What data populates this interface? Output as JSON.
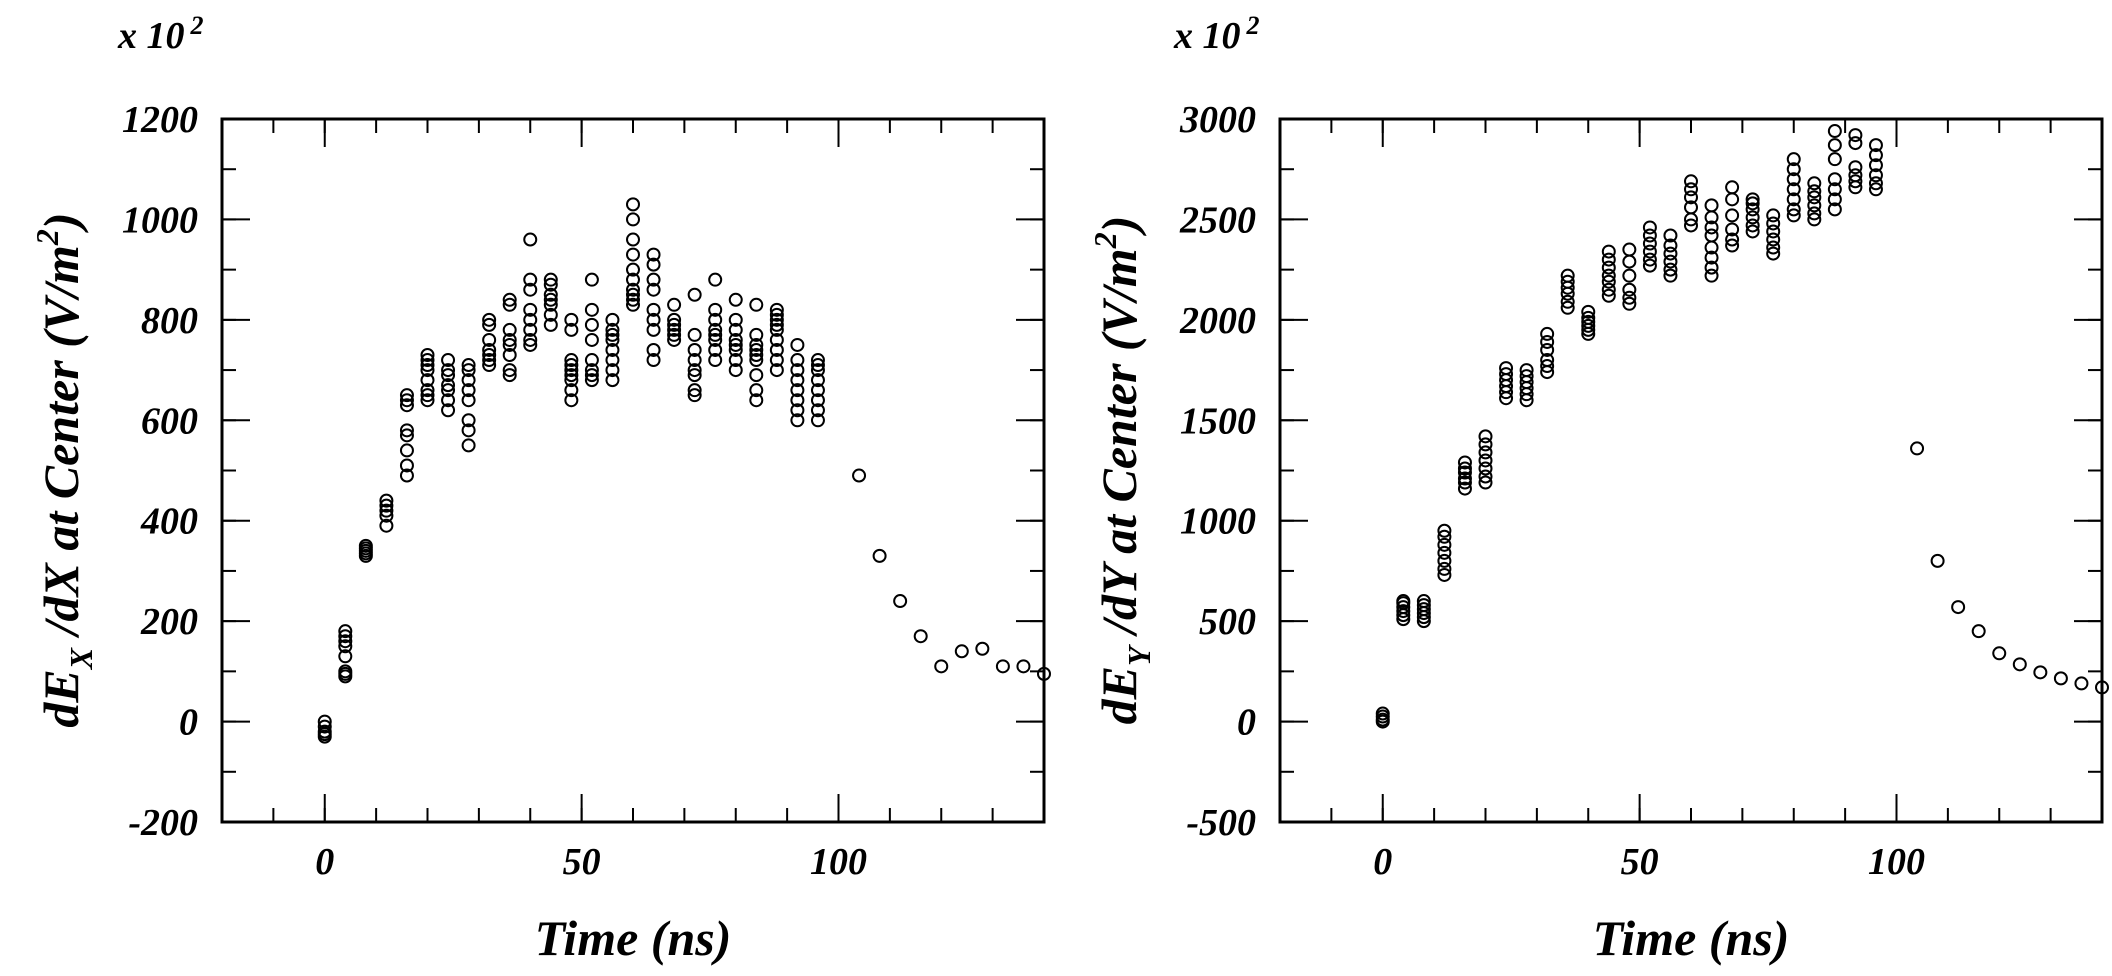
{
  "chart_data": [
    {
      "type": "scatter",
      "scale_label": "x 10",
      "scale_exponent": "2",
      "xlabel": "Time (ns)",
      "ylabel_main": "dE",
      "ylabel_sub": "X",
      "ylabel_rest": " /dX at Center (V/m",
      "ylabel_sup": "2",
      "ylabel_close": ")",
      "xlim": [
        -20,
        140
      ],
      "ylim": [
        -200,
        1200
      ],
      "xticks": [
        0,
        50,
        100
      ],
      "yticks": [
        -200,
        0,
        200,
        400,
        600,
        800,
        1000,
        1200
      ],
      "xtick_labels": [
        "0",
        "50",
        "100"
      ],
      "ytick_labels": [
        "-200",
        "0",
        "200",
        "400",
        "600",
        "800",
        "1000",
        "1200"
      ],
      "x_minor_step": 10,
      "y_minor_step": 100,
      "marker": "open-circle",
      "x": [
        0,
        0,
        0,
        0,
        0,
        4,
        4,
        4,
        4,
        4,
        4,
        4,
        4,
        8,
        8,
        8,
        8,
        8,
        12,
        12,
        12,
        12,
        12,
        16,
        16,
        16,
        16,
        16,
        16,
        16,
        16,
        20,
        20,
        20,
        20,
        20,
        20,
        20,
        20,
        24,
        24,
        24,
        24,
        24,
        24,
        24,
        28,
        28,
        28,
        28,
        28,
        28,
        28,
        28,
        32,
        32,
        32,
        32,
        32,
        32,
        32,
        36,
        36,
        36,
        36,
        36,
        36,
        36,
        36,
        40,
        40,
        40,
        40,
        40,
        40,
        40,
        40,
        44,
        44,
        44,
        44,
        44,
        44,
        44,
        48,
        48,
        48,
        48,
        48,
        48,
        48,
        48,
        48,
        52,
        52,
        52,
        52,
        52,
        52,
        52,
        52,
        56,
        56,
        56,
        56,
        56,
        56,
        56,
        56,
        60,
        60,
        60,
        60,
        60,
        60,
        60,
        60,
        60,
        60,
        64,
        64,
        64,
        64,
        64,
        64,
        64,
        64,
        64,
        68,
        68,
        68,
        68,
        68,
        68,
        72,
        72,
        72,
        72,
        72,
        72,
        72,
        72,
        76,
        76,
        76,
        76,
        76,
        76,
        76,
        76,
        80,
        80,
        80,
        80,
        80,
        80,
        80,
        80,
        84,
        84,
        84,
        84,
        84,
        84,
        84,
        84,
        84,
        88,
        88,
        88,
        88,
        88,
        88,
        88,
        88,
        88,
        92,
        92,
        92,
        92,
        92,
        92,
        92,
        92,
        96,
        96,
        96,
        96,
        96,
        96,
        96,
        96,
        104,
        108,
        112,
        116,
        120,
        124,
        128,
        132,
        136,
        140
      ],
      "y": [
        -30,
        -20,
        -10,
        0,
        -25,
        90,
        100,
        130,
        150,
        160,
        170,
        180,
        95,
        330,
        340,
        345,
        350,
        335,
        390,
        410,
        420,
        430,
        440,
        490,
        510,
        540,
        570,
        580,
        630,
        640,
        650,
        640,
        660,
        680,
        700,
        720,
        730,
        710,
        650,
        620,
        640,
        660,
        670,
        690,
        700,
        720,
        550,
        580,
        600,
        640,
        660,
        680,
        700,
        710,
        710,
        720,
        730,
        740,
        760,
        790,
        800,
        690,
        700,
        730,
        750,
        760,
        780,
        830,
        840,
        750,
        760,
        780,
        800,
        820,
        860,
        880,
        960,
        790,
        810,
        830,
        840,
        850,
        870,
        880,
        640,
        660,
        680,
        690,
        700,
        710,
        720,
        780,
        800,
        680,
        690,
        700,
        720,
        760,
        790,
        820,
        880,
        680,
        700,
        720,
        740,
        760,
        770,
        780,
        800,
        830,
        840,
        850,
        860,
        880,
        900,
        930,
        960,
        1000,
        1030,
        720,
        740,
        780,
        800,
        820,
        860,
        880,
        910,
        930,
        760,
        770,
        780,
        790,
        800,
        830,
        650,
        660,
        690,
        700,
        720,
        740,
        770,
        850,
        720,
        740,
        760,
        770,
        780,
        800,
        820,
        880,
        700,
        720,
        740,
        750,
        760,
        780,
        800,
        840,
        640,
        660,
        690,
        720,
        730,
        740,
        750,
        770,
        830,
        700,
        720,
        740,
        760,
        780,
        790,
        800,
        810,
        820,
        600,
        620,
        640,
        660,
        680,
        700,
        720,
        750,
        600,
        620,
        640,
        660,
        680,
        700,
        710,
        720,
        490,
        330,
        240,
        170,
        110,
        140,
        145,
        110,
        110,
        95
      ]
    },
    {
      "type": "scatter",
      "scale_label": "x 10",
      "scale_exponent": "2",
      "xlabel": "Time (ns)",
      "ylabel_main": "dE",
      "ylabel_sub": "Y",
      "ylabel_rest": " /dY at Center (V/m",
      "ylabel_sup": "2",
      "ylabel_close": ")",
      "xlim": [
        -20,
        140
      ],
      "ylim": [
        -500,
        3000
      ],
      "xticks": [
        0,
        50,
        100
      ],
      "yticks": [
        -500,
        0,
        500,
        1000,
        1500,
        2000,
        2500,
        3000
      ],
      "xtick_labels": [
        "0",
        "50",
        "100"
      ],
      "ytick_labels": [
        "-500",
        "0",
        "500",
        "1000",
        "1500",
        "2000",
        "2500",
        "3000"
      ],
      "x_minor_step": 10,
      "y_minor_step": 250,
      "marker": "open-circle",
      "x": [
        0,
        0,
        0,
        0,
        4,
        4,
        4,
        4,
        4,
        4,
        8,
        8,
        8,
        8,
        8,
        8,
        12,
        12,
        12,
        12,
        12,
        12,
        12,
        16,
        16,
        16,
        16,
        16,
        16,
        20,
        20,
        20,
        20,
        20,
        20,
        20,
        24,
        24,
        24,
        24,
        24,
        24,
        28,
        28,
        28,
        28,
        28,
        28,
        32,
        32,
        32,
        32,
        32,
        32,
        36,
        36,
        36,
        36,
        36,
        36,
        40,
        40,
        40,
        40,
        40,
        40,
        44,
        44,
        44,
        44,
        44,
        44,
        44,
        48,
        48,
        48,
        48,
        48,
        48,
        52,
        52,
        52,
        52,
        52,
        52,
        56,
        56,
        56,
        56,
        56,
        56,
        60,
        60,
        60,
        60,
        60,
        60,
        64,
        64,
        64,
        64,
        64,
        64,
        64,
        64,
        68,
        68,
        68,
        68,
        68,
        68,
        72,
        72,
        72,
        72,
        72,
        72,
        76,
        76,
        76,
        76,
        76,
        76,
        80,
        80,
        80,
        80,
        80,
        80,
        80,
        84,
        84,
        84,
        84,
        84,
        84,
        88,
        88,
        88,
        88,
        88,
        88,
        88,
        92,
        92,
        92,
        92,
        92,
        92,
        96,
        96,
        96,
        96,
        96,
        96,
        104,
        108,
        112,
        116,
        120,
        124,
        128,
        132,
        136,
        140
      ],
      "y": [
        0,
        10,
        25,
        40,
        510,
        530,
        550,
        570,
        590,
        600,
        500,
        520,
        540,
        560,
        580,
        600,
        730,
        760,
        800,
        840,
        880,
        920,
        950,
        1160,
        1190,
        1210,
        1240,
        1260,
        1290,
        1190,
        1220,
        1260,
        1300,
        1340,
        1380,
        1420,
        1610,
        1640,
        1670,
        1700,
        1730,
        1760,
        1600,
        1630,
        1660,
        1690,
        1720,
        1750,
        1740,
        1770,
        1800,
        1850,
        1890,
        1930,
        2060,
        2090,
        2130,
        2160,
        2190,
        2220,
        1930,
        1950,
        1970,
        1990,
        2010,
        2040,
        2120,
        2150,
        2190,
        2220,
        2260,
        2300,
        2340,
        2080,
        2110,
        2150,
        2220,
        2290,
        2350,
        2270,
        2300,
        2340,
        2380,
        2420,
        2460,
        2220,
        2250,
        2290,
        2330,
        2370,
        2420,
        2470,
        2500,
        2560,
        2610,
        2650,
        2690,
        2220,
        2260,
        2310,
        2360,
        2420,
        2460,
        2510,
        2570,
        2370,
        2400,
        2450,
        2520,
        2600,
        2660,
        2440,
        2470,
        2510,
        2550,
        2580,
        2600,
        2330,
        2360,
        2400,
        2440,
        2480,
        2520,
        2520,
        2550,
        2600,
        2650,
        2700,
        2750,
        2800,
        2500,
        2530,
        2570,
        2610,
        2640,
        2680,
        2550,
        2600,
        2650,
        2700,
        2800,
        2870,
        2940,
        2660,
        2690,
        2720,
        2760,
        2880,
        2920,
        2650,
        2680,
        2720,
        2770,
        2820,
        2870,
        1360,
        800,
        570,
        450,
        340,
        285,
        245,
        215,
        190,
        170
      ]
    }
  ]
}
